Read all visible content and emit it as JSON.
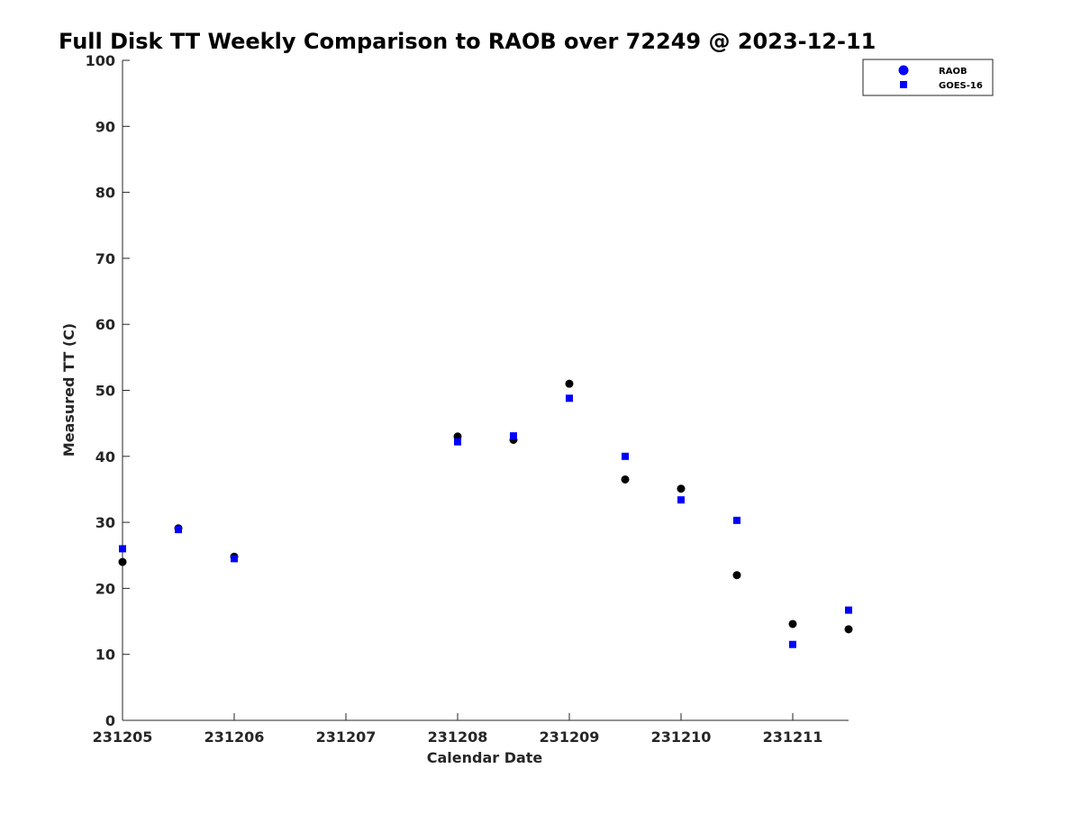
{
  "chart_data": {
    "type": "scatter",
    "title": "Full Disk TT Weekly Comparison to RAOB over 72249 @ 2023-12-11",
    "xlabel": "Calendar Date",
    "ylabel": "Measured TT (C)",
    "xlim": [
      231205,
      231211.5
    ],
    "ylim": [
      0,
      100
    ],
    "x_ticks": [
      231205,
      231206,
      231207,
      231208,
      231209,
      231210,
      231211
    ],
    "x_tick_labels": [
      "231205",
      "231206",
      "231207",
      "231208",
      "231209",
      "231210",
      "231211"
    ],
    "y_ticks": [
      0,
      10,
      20,
      30,
      40,
      50,
      60,
      70,
      80,
      90,
      100
    ],
    "y_tick_labels": [
      "0",
      "10",
      "20",
      "30",
      "40",
      "50",
      "60",
      "70",
      "80",
      "90",
      "100"
    ],
    "grid": false,
    "legend_position": "top-right",
    "series": [
      {
        "name": "RAOB",
        "marker": "circle",
        "color": "#000000",
        "legend_color": "#0000ff",
        "points": [
          {
            "x": 231205.0,
            "y": 24.0
          },
          {
            "x": 231205.5,
            "y": 29.1
          },
          {
            "x": 231206.0,
            "y": 24.8
          },
          {
            "x": 231208.0,
            "y": 43.0
          },
          {
            "x": 231208.5,
            "y": 42.5
          },
          {
            "x": 231209.0,
            "y": 51.0
          },
          {
            "x": 231209.5,
            "y": 36.5
          },
          {
            "x": 231210.0,
            "y": 35.1
          },
          {
            "x": 231210.5,
            "y": 22.0
          },
          {
            "x": 231211.0,
            "y": 14.6
          },
          {
            "x": 231211.5,
            "y": 13.8
          }
        ]
      },
      {
        "name": "GOES-16",
        "marker": "square",
        "color": "#0000ff",
        "legend_color": "#0000ff",
        "points": [
          {
            "x": 231205.0,
            "y": 26.0
          },
          {
            "x": 231205.5,
            "y": 28.9
          },
          {
            "x": 231206.0,
            "y": 24.5
          },
          {
            "x": 231208.0,
            "y": 42.2
          },
          {
            "x": 231208.5,
            "y": 43.1
          },
          {
            "x": 231209.0,
            "y": 48.8
          },
          {
            "x": 231209.5,
            "y": 40.0
          },
          {
            "x": 231210.0,
            "y": 33.4
          },
          {
            "x": 231210.5,
            "y": 30.3
          },
          {
            "x": 231211.0,
            "y": 11.5
          },
          {
            "x": 231211.5,
            "y": 16.7
          }
        ]
      }
    ]
  }
}
